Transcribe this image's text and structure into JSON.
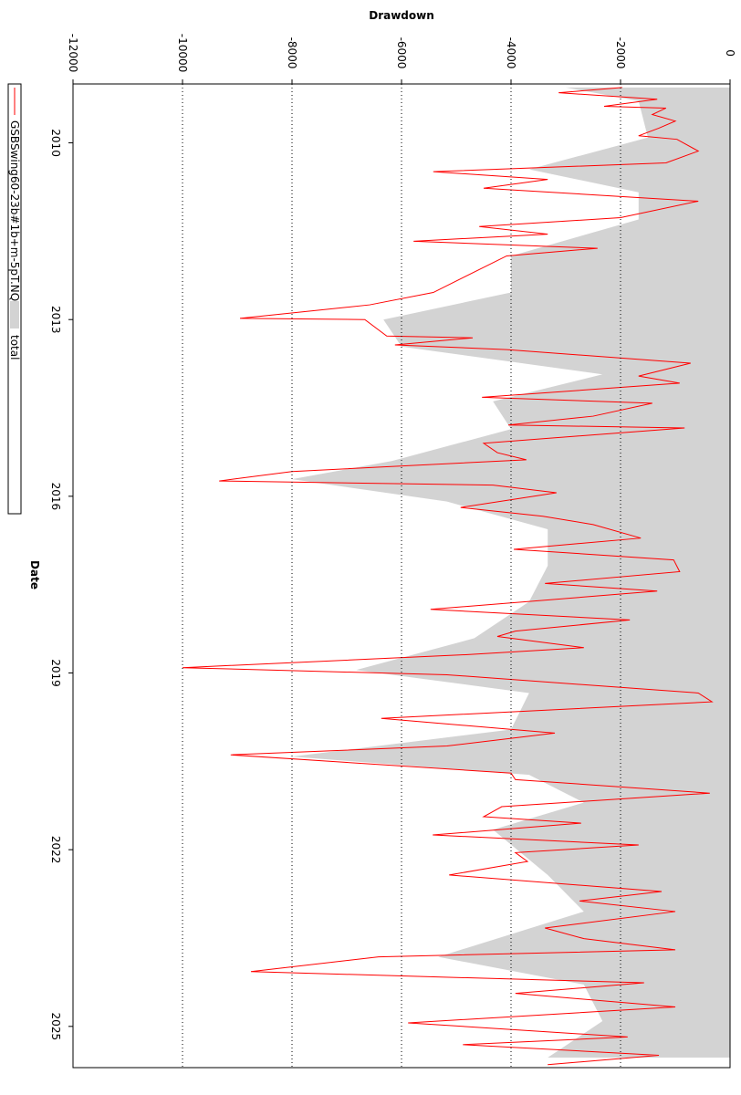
{
  "chart_data": {
    "type": "line",
    "title": "Drawdown",
    "x_label": "Date",
    "xlim": [
      2009.0,
      2025.7
    ],
    "xticks": [
      2010,
      2013,
      2016,
      2019,
      2022,
      2025
    ],
    "ylim": [
      -12000,
      0
    ],
    "yticks": [
      -12000,
      -10000,
      -8000,
      -6000,
      -4000,
      -2000,
      0
    ],
    "grid": true,
    "x": [
      2009.06,
      2009.15,
      2009.26,
      2009.38,
      2009.41,
      2009.52,
      2009.63,
      2009.75,
      2009.88,
      2009.94,
      2010.14,
      2010.34,
      2010.49,
      2010.62,
      2010.77,
      2010.99,
      2011.27,
      2011.42,
      2011.55,
      2011.67,
      2011.79,
      2011.92,
      2012.54,
      2012.75,
      2012.98,
      2013.0,
      2013.28,
      2013.31,
      2013.43,
      2013.51,
      2013.74,
      2013.96,
      2014.08,
      2014.32,
      2014.42,
      2014.64,
      2014.79,
      2014.84,
      2015.1,
      2015.26,
      2015.38,
      2015.58,
      2015.74,
      2015.81,
      2015.94,
      2016.19,
      2016.34,
      2016.48,
      2016.71,
      2016.9,
      2017.08,
      2017.28,
      2017.48,
      2017.61,
      2017.92,
      2018.1,
      2018.29,
      2018.38,
      2018.57,
      2018.69,
      2018.91,
      2019.03,
      2019.34,
      2019.49,
      2019.77,
      2020.02,
      2020.24,
      2020.39,
      2020.7,
      2020.81,
      2021.04,
      2021.27,
      2021.44,
      2021.55,
      2021.75,
      2021.92,
      2022.05,
      2022.2,
      2022.43,
      2022.71,
      2022.87,
      2023.05,
      2023.33,
      2023.51,
      2023.7,
      2023.82,
      2024.07,
      2024.26,
      2024.44,
      2024.67,
      2024.94,
      2025.18,
      2025.31,
      2025.49,
      2025.65
    ],
    "series": [
      {
        "name": "total",
        "color": "#d3d3d3",
        "kind": "area",
        "x": [
          2009.06,
          2009.29,
          2009.91,
          2010.45,
          2010.84,
          2011.3,
          2011.92,
          2012.54,
          2013.0,
          2013.46,
          2013.93,
          2014.39,
          2014.86,
          2015.4,
          2015.71,
          2016.09,
          2016.56,
          2017.18,
          2017.79,
          2018.41,
          2018.95,
          2019.34,
          2019.96,
          2020.42,
          2020.73,
          2021.2,
          2021.66,
          2022.43,
          2023.05,
          2023.82,
          2024.29,
          2024.91,
          2025.53
        ],
        "values": [
          -3000,
          -1670,
          -1500,
          -3670,
          -1670,
          -1670,
          -4000,
          -4000,
          -6330,
          -6000,
          -2330,
          -4330,
          -4000,
          -6170,
          -8000,
          -5170,
          -3330,
          -3330,
          -3670,
          -4670,
          -6830,
          -3670,
          -4000,
          -8000,
          -3670,
          -2670,
          -4330,
          -3330,
          -2670,
          -5330,
          -2670,
          -2330,
          -3330
        ]
      },
      {
        "name": "GSBSwing60-23b#1b+m-5pT.NQ",
        "color": "#ff0000",
        "kind": "line",
        "values": [
          -1970,
          -3130,
          -1330,
          -2300,
          -1170,
          -1420,
          -1000,
          -1300,
          -1670,
          -970,
          -580,
          -1170,
          -5420,
          -3330,
          -4500,
          -580,
          -2000,
          -4580,
          -3330,
          -5780,
          -2420,
          -4080,
          -5420,
          -6580,
          -8950,
          -6670,
          -6270,
          -4700,
          -6120,
          -4080,
          -720,
          -1670,
          -920,
          -4530,
          -1420,
          -2500,
          -4050,
          -830,
          -4500,
          -4250,
          -3720,
          -8000,
          -9330,
          -4330,
          -3170,
          -4920,
          -3420,
          -2500,
          -1630,
          -3950,
          -1030,
          -920,
          -3380,
          -1330,
          -5470,
          -1830,
          -3920,
          -4250,
          -2670,
          -4830,
          -10000,
          -5170,
          -580,
          -330,
          -6370,
          -3200,
          -5170,
          -9120,
          -4000,
          -3920,
          -370,
          -4170,
          -4500,
          -2720,
          -5430,
          -1670,
          -3920,
          -3700,
          -5130,
          -1250,
          -2750,
          -1000,
          -3380,
          -2670,
          -1000,
          -6420,
          -8750,
          -1570,
          -3920,
          -1000,
          -5880,
          -1870,
          -4880,
          -1300,
          -3330
        ]
      }
    ]
  }
}
